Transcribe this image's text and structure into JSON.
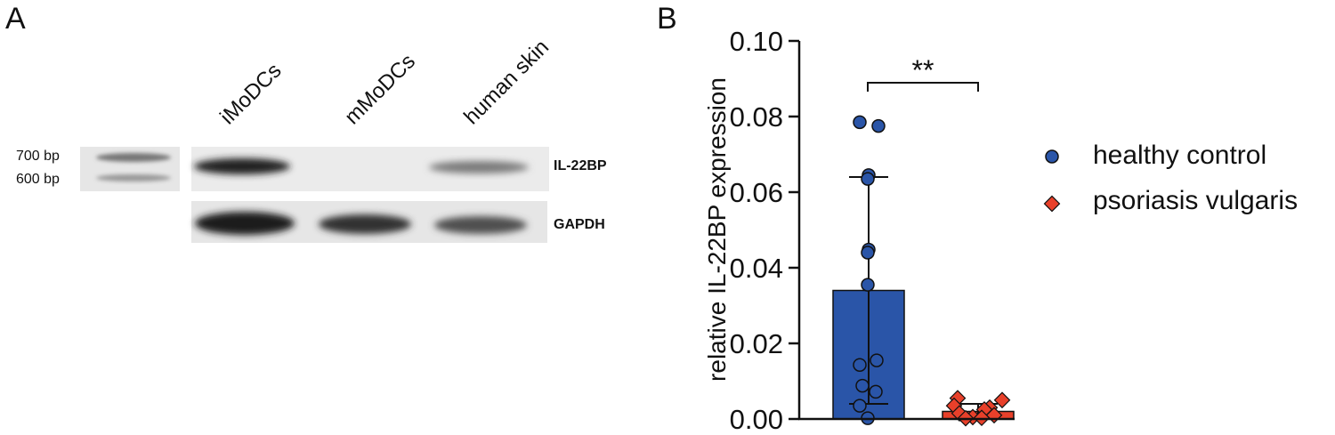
{
  "panel_a": {
    "letter": "A",
    "lanes": [
      "iMoDCs",
      "mMoDCs",
      "human skin"
    ],
    "markers": [
      "700 bp",
      "600 bp"
    ],
    "genes": [
      "IL-22BP",
      "GAPDH"
    ]
  },
  "panel_b": {
    "letter": "B",
    "significance": "**"
  },
  "chart_data": {
    "type": "bar",
    "title": "",
    "xlabel": "",
    "ylabel": "relative  IL-22BP expression",
    "ylim": [
      0,
      0.1
    ],
    "yticks": [
      "0.00",
      "0.02",
      "0.04",
      "0.06",
      "0.08",
      "0.10"
    ],
    "categories": [
      "healthy control",
      "psoriasis vulgaris"
    ],
    "grid": false,
    "legend": "right",
    "series": [
      {
        "name": "healthy control",
        "marker": "circle",
        "color": "#2a55a8",
        "mean": 0.034,
        "sd_low": 0.004,
        "sd_high": 0.064,
        "points": [
          0.0785,
          0.0775,
          0.0645,
          0.0635,
          0.0448,
          0.044,
          0.0355,
          0.0155,
          0.0143,
          0.0088,
          0.0072,
          0.0035,
          0.0002
        ]
      },
      {
        "name": "psoriasis vulgaris",
        "marker": "diamond",
        "color": "#e8402a",
        "mean": 0.002,
        "sd_low": 0.0,
        "sd_high": 0.004,
        "points": [
          0.0055,
          0.005,
          0.0035,
          0.003,
          0.0025,
          0.0015,
          0.001,
          0.0005,
          0.0003,
          0.0002
        ]
      }
    ]
  },
  "legend_colors": {
    "healthy": "#2a55a8",
    "psoriasis": "#e8402a"
  }
}
